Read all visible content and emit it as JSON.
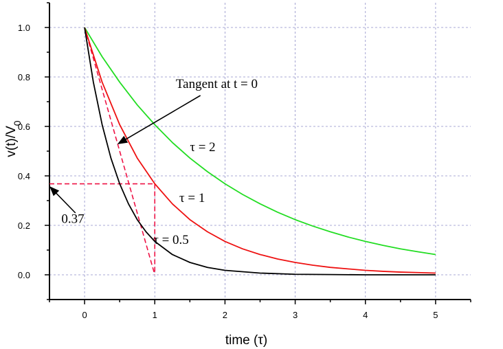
{
  "chart_data": {
    "type": "line",
    "xlabel": "time (τ)",
    "ylabel_main": "v(t)/V",
    "ylabel_sub": "0",
    "xlim": [
      -0.5,
      5.5
    ],
    "ylim": [
      -0.1,
      1.1
    ],
    "grid": true,
    "x_ticks": [
      0,
      1,
      2,
      3,
      4,
      5
    ],
    "x_tick_labels": [
      "0",
      "1",
      "2",
      "3",
      "4",
      "5"
    ],
    "y_ticks": [
      0.0,
      0.2,
      0.4,
      0.6,
      0.8,
      1.0
    ],
    "y_tick_labels": [
      "0.0",
      "0.2",
      "0.4",
      "0.6",
      "0.8",
      "1.0"
    ],
    "series": [
      {
        "label": "τ = 2",
        "color": "#22dd22",
        "x": [
          0,
          0.25,
          0.5,
          0.75,
          1,
          1.25,
          1.5,
          1.75,
          2,
          2.25,
          2.5,
          2.75,
          3,
          3.25,
          3.5,
          3.75,
          4,
          4.25,
          4.5,
          4.75,
          5
        ],
        "values": [
          1.0,
          0.882,
          0.779,
          0.687,
          0.607,
          0.535,
          0.472,
          0.417,
          0.368,
          0.325,
          0.287,
          0.253,
          0.223,
          0.197,
          0.174,
          0.153,
          0.135,
          0.119,
          0.105,
          0.093,
          0.082
        ]
      },
      {
        "label": "τ = 1",
        "color": "#ee1111",
        "x": [
          0,
          0.25,
          0.5,
          0.75,
          1,
          1.25,
          1.5,
          1.75,
          2,
          2.25,
          2.5,
          2.75,
          3,
          3.25,
          3.5,
          3.75,
          4,
          4.25,
          4.5,
          4.75,
          5
        ],
        "values": [
          1.0,
          0.779,
          0.607,
          0.472,
          0.368,
          0.287,
          0.223,
          0.174,
          0.135,
          0.105,
          0.082,
          0.064,
          0.05,
          0.039,
          0.03,
          0.024,
          0.018,
          0.014,
          0.011,
          0.009,
          0.007
        ]
      },
      {
        "label": "τ = 0.5",
        "color": "#000000",
        "x": [
          0,
          0.125,
          0.25,
          0.375,
          0.5,
          0.625,
          0.75,
          0.875,
          1,
          1.25,
          1.5,
          1.75,
          2,
          2.5,
          3,
          3.5,
          4,
          4.5,
          5
        ],
        "values": [
          1.0,
          0.779,
          0.607,
          0.472,
          0.368,
          0.287,
          0.223,
          0.174,
          0.135,
          0.082,
          0.05,
          0.03,
          0.018,
          0.007,
          0.002,
          0.001,
          0.0,
          0.0,
          0.0
        ]
      }
    ],
    "tangent_line": {
      "x": [
        0,
        1
      ],
      "y": [
        1.0,
        0.0
      ],
      "color": "#ee1144"
    },
    "reference_level": {
      "y": 0.368,
      "x_from": -0.5,
      "x_to": 1.0,
      "color": "#ee1144"
    },
    "reference_drop": {
      "x": 1.0,
      "y_from": 0.368,
      "y_to": 0.0
    },
    "annotations": {
      "tangent": {
        "text": "Tangent at t = 0",
        "text_x": 1.3,
        "text_y": 0.755,
        "arrow_from": [
          1.65,
          0.725
        ],
        "arrow_to": [
          0.48,
          0.53
        ]
      },
      "level": {
        "text": "0.37",
        "text_x": -0.33,
        "text_y": 0.21,
        "arrow_from": [
          -0.13,
          0.25
        ],
        "arrow_to": [
          -0.49,
          0.355
        ]
      },
      "tau2": {
        "text": "τ = 2",
        "text_x": 1.5,
        "text_y": 0.5
      },
      "tau1": {
        "text": "τ = 1",
        "text_x": 1.35,
        "text_y": 0.295
      },
      "tau05": {
        "text": "τ = 0.5",
        "text_x": 0.98,
        "text_y": 0.125
      }
    }
  }
}
